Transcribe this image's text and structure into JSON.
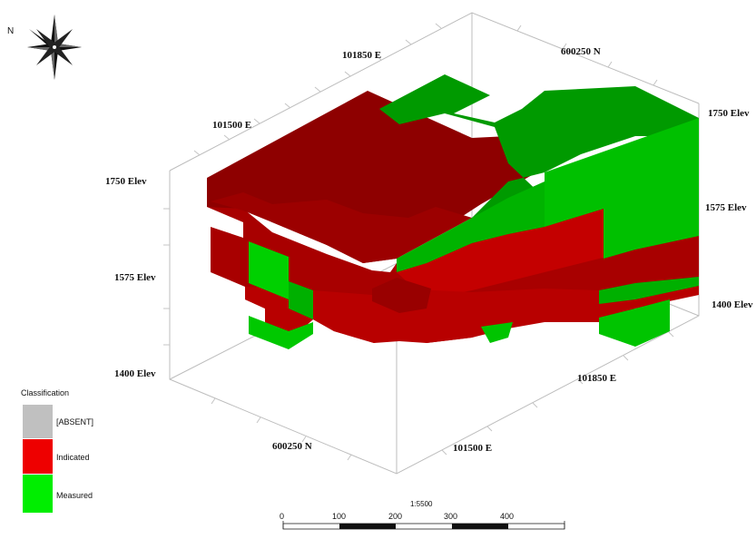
{
  "compass": {
    "north_label": "N",
    "icon": "compass-rose-icon"
  },
  "axis_labels": {
    "top_east_1": "101850 E",
    "top_east_2": "101500 E",
    "top_north": "600250 N",
    "left_elev_high": "1750 Elev",
    "left_elev_mid": "1575 Elev",
    "left_elev_low": "1400 Elev",
    "right_elev_high": "1750 Elev",
    "right_elev_mid": "1575 Elev",
    "right_elev_low": "1400 Elev",
    "bottom_north": "600250 N",
    "bottom_east_1": "101850 E",
    "bottom_east_2": "101500 E"
  },
  "legend": {
    "title": "Classification",
    "items": [
      {
        "label": "[ABSENT]",
        "color": "#c0c0c0"
      },
      {
        "label": "Indicated",
        "color": "#ee0000"
      },
      {
        "label": "Measured",
        "color": "#00ee00"
      }
    ]
  },
  "scale_bar": {
    "ratio": "1:5500",
    "ticks": [
      "0",
      "100",
      "200",
      "300",
      "400"
    ]
  },
  "colors": {
    "indicated_top": "#8e0000",
    "indicated_side": "#c40000",
    "indicated_front": "#a80000",
    "measured_top": "#009a00",
    "measured_side": "#00c800",
    "measured_front": "#00b000"
  }
}
